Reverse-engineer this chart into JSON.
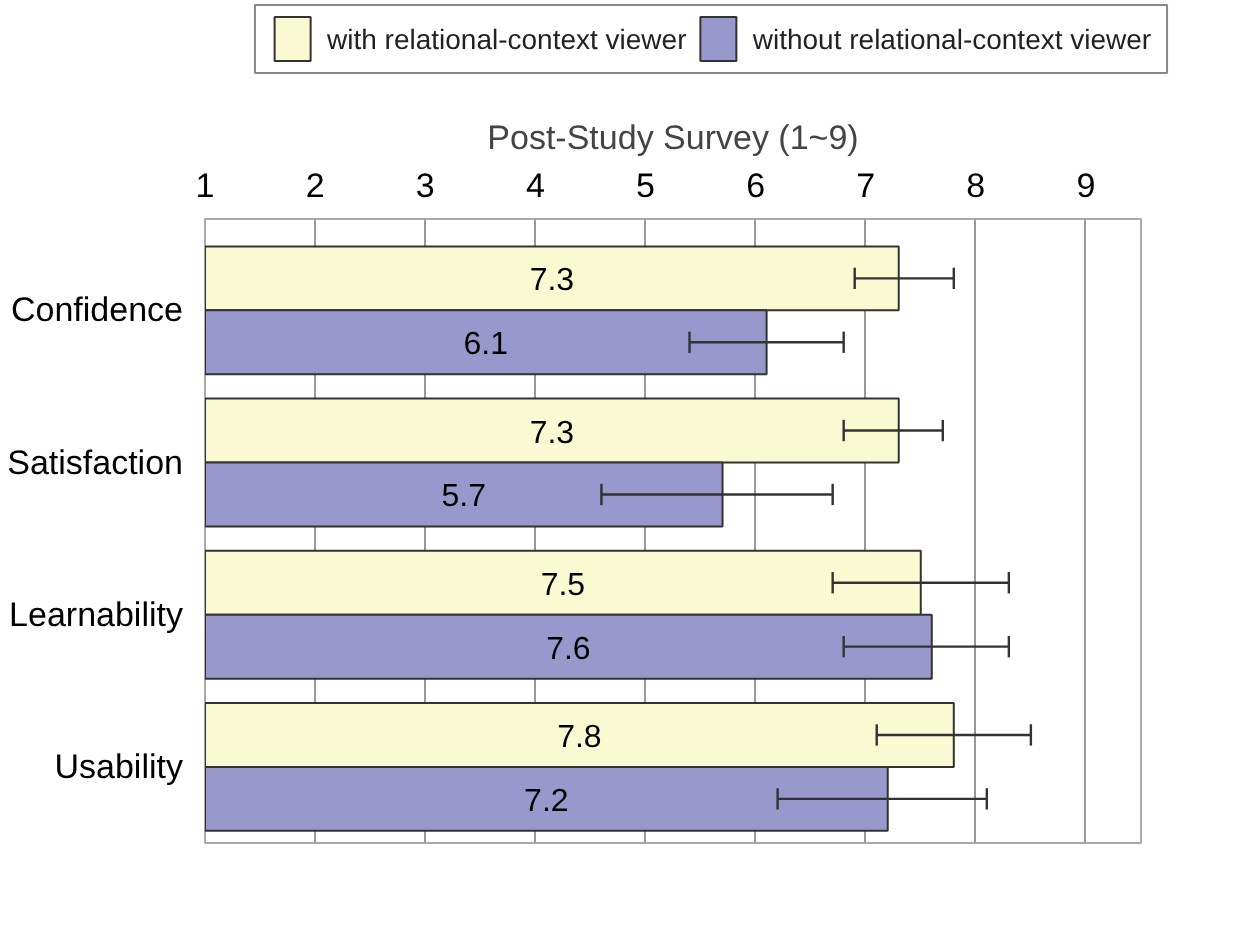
{
  "chart_data": {
    "type": "bar",
    "orientation": "horizontal",
    "title": "Post-Study Survey (1~9)",
    "categories": [
      "Confidence",
      "Satisfaction",
      "Learnability",
      "Usability"
    ],
    "series": [
      {
        "name": "with relational-context viewer",
        "color": "#fafad2",
        "values": [
          7.3,
          7.3,
          7.5,
          7.8
        ],
        "errors": [
          [
            6.9,
            7.8
          ],
          [
            6.8,
            7.7
          ],
          [
            6.7,
            8.3
          ],
          [
            7.1,
            8.5
          ]
        ]
      },
      {
        "name": "without relational-context viewer",
        "color": "#9898cc",
        "values": [
          6.1,
          5.7,
          7.6,
          7.2
        ],
        "errors": [
          [
            5.4,
            6.8
          ],
          [
            4.6,
            6.7
          ],
          [
            6.8,
            8.3
          ],
          [
            6.2,
            8.1
          ]
        ]
      }
    ],
    "xlim": [
      1,
      9.5
    ],
    "xticks": [
      1,
      2,
      3,
      4,
      5,
      6,
      7,
      8,
      9
    ],
    "grid": "x",
    "legend": "top",
    "data_labels": true
  }
}
